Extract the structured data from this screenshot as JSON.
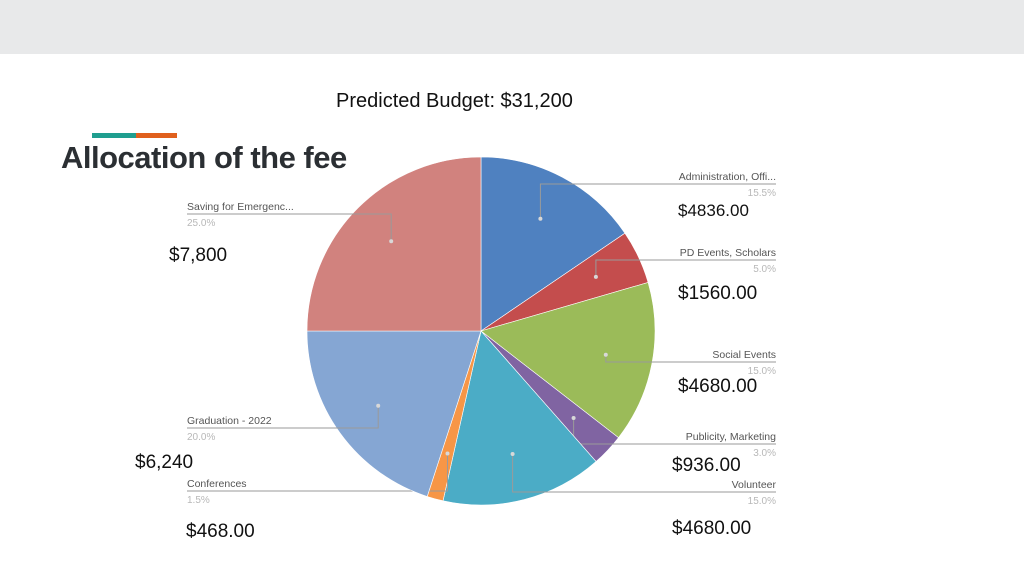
{
  "header": {
    "subtitle": "Predicted Budget: $31,200",
    "title": "Allocation of the fee",
    "accent_colors": [
      "#1f9e8f",
      "#e0601d"
    ]
  },
  "chart_data": {
    "type": "pie",
    "slices": [
      {
        "label": "Administration, Offi...",
        "percent_label": "15.5%",
        "value": 15.5,
        "color": "#4f81c0",
        "amount": "$4836.00",
        "side": "right"
      },
      {
        "label": "PD Events, Scholars",
        "percent_label": "5.0%",
        "value": 5.0,
        "color": "#c44d4d",
        "amount": "$1560.00",
        "side": "right"
      },
      {
        "label": "Social Events",
        "percent_label": "15.0%",
        "value": 15.0,
        "color": "#9bbb59",
        "amount": "$4680.00",
        "side": "right"
      },
      {
        "label": "Publicity, Marketing",
        "percent_label": "3.0%",
        "value": 3.0,
        "color": "#8064a2",
        "amount": "$936.00",
        "side": "right"
      },
      {
        "label": "Volunteer",
        "percent_label": "15.0%",
        "value": 15.0,
        "color": "#4bacc6",
        "amount": "$4680.00",
        "side": "right"
      },
      {
        "label": "Conferences",
        "percent_label": "1.5%",
        "value": 1.5,
        "color": "#f79646",
        "amount": "$468.00",
        "side": "left"
      },
      {
        "label": "Graduation - 2022",
        "percent_label": "20.0%",
        "value": 20.0,
        "color": "#85a6d3",
        "amount": "$6,240",
        "side": "left"
      },
      {
        "label": "Saving for Emergenc...",
        "percent_label": "25.0%",
        "value": 25.0,
        "color": "#d1827e",
        "amount": "$7,800",
        "side": "left"
      }
    ]
  }
}
